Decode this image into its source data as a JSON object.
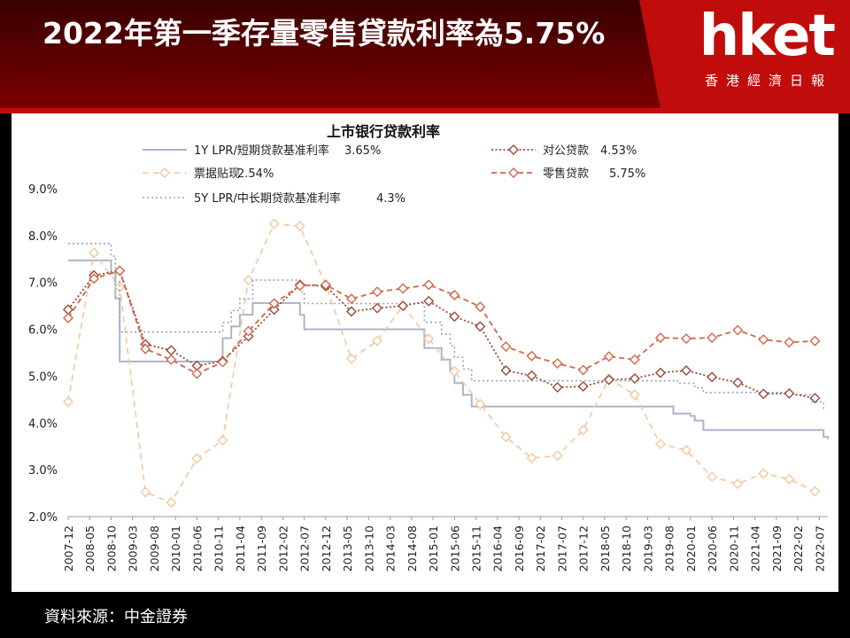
{
  "header": {
    "title": "2022年第一季存量零售貸款利率為5.75%"
  },
  "logo": {
    "text": "hket",
    "subtitle": "香港經濟日報"
  },
  "source": "資料來源：中金證券",
  "colors": {
    "header_bg": "#7a0000",
    "logo_bg": "#c10c0c",
    "lpr1y": "#aeb4c8",
    "bill": "#f0c8a0",
    "lpr5y": "#9aa0b8",
    "corporate": "#9a4a3a",
    "retail": "#d0674a"
  },
  "chart_data": {
    "type": "line",
    "title": "上市银行贷款利率",
    "ylim": [
      2.0,
      9.0
    ],
    "yticks": [
      "2.0%",
      "3.0%",
      "4.0%",
      "5.0%",
      "6.0%",
      "7.0%",
      "8.0%",
      "9.0%"
    ],
    "xticks": [
      "2007-12",
      "2008-05",
      "2008-10",
      "2009-03",
      "2009-08",
      "2010-01",
      "2010-06",
      "2010-11",
      "2011-04",
      "2011-09",
      "2012-02",
      "2012-07",
      "2012-12",
      "2013-05",
      "2013-10",
      "2014-03",
      "2014-08",
      "2015-01",
      "2015-06",
      "2015-11",
      "2016-04",
      "2016-09",
      "2017-02",
      "2017-07",
      "2017-12",
      "2018-05",
      "2018-10",
      "2019-03",
      "2019-08",
      "2020-01",
      "2020-06",
      "2020-11",
      "2021-04",
      "2021-09",
      "2022-02",
      "2022-07"
    ],
    "series": [
      {
        "name": "1Y LPR/短期贷款基准利率",
        "value_label": "3.65%",
        "style": "solid",
        "x": [
          "2007-12",
          "2008-09",
          "2008-10",
          "2008-11",
          "2008-12",
          "2010-10",
          "2010-12",
          "2011-02",
          "2011-04",
          "2011-07",
          "2012-06",
          "2012-07",
          "2014-11",
          "2015-03",
          "2015-05",
          "2015-06",
          "2015-08",
          "2015-10",
          "2019-08",
          "2019-09",
          "2019-11",
          "2020-01",
          "2020-02",
          "2020-04",
          "2022-01",
          "2022-08",
          "2022-09"
        ],
        "y": [
          7.47,
          7.47,
          7.2,
          6.66,
          5.31,
          5.31,
          5.81,
          6.06,
          6.31,
          6.56,
          6.31,
          6.0,
          5.6,
          5.35,
          5.1,
          4.85,
          4.6,
          4.35,
          4.35,
          4.2,
          4.2,
          4.15,
          4.05,
          3.85,
          3.85,
          3.7,
          3.65
        ]
      },
      {
        "name": "票据贴现",
        "value_label": "2.54%",
        "style": "dashed-diamond",
        "x": [
          "2007-12",
          "2008-06",
          "2008-12",
          "2009-06",
          "2009-12",
          "2010-06",
          "2010-12",
          "2011-06",
          "2011-12",
          "2012-06",
          "2012-12",
          "2013-06",
          "2013-12",
          "2014-06",
          "2014-12",
          "2015-06",
          "2015-12",
          "2016-06",
          "2016-12",
          "2017-06",
          "2017-12",
          "2018-06",
          "2018-12",
          "2019-06",
          "2019-12",
          "2020-06",
          "2020-12",
          "2021-06",
          "2021-12",
          "2022-06"
        ],
        "y": [
          4.45,
          7.63,
          6.9,
          2.52,
          2.3,
          3.24,
          3.63,
          7.05,
          8.25,
          8.2,
          6.95,
          5.37,
          5.75,
          6.5,
          5.8,
          5.1,
          4.4,
          3.7,
          3.25,
          3.3,
          3.85,
          4.95,
          4.6,
          3.55,
          3.42,
          2.85,
          2.7,
          2.92,
          2.8,
          2.54
        ]
      },
      {
        "name": "5Y LPR/中长期贷款基准利率",
        "value_label": "4.3%",
        "style": "dotted",
        "x": [
          "2007-12",
          "2008-09",
          "2008-10",
          "2008-11",
          "2008-12",
          "2010-10",
          "2010-12",
          "2011-02",
          "2011-04",
          "2011-07",
          "2012-06",
          "2012-07",
          "2014-11",
          "2015-03",
          "2015-05",
          "2015-06",
          "2015-08",
          "2015-10",
          "2019-08",
          "2019-10",
          "2020-02",
          "2020-04",
          "2021-12",
          "2022-01",
          "2022-05",
          "2022-08"
        ],
        "y": [
          7.83,
          7.83,
          7.56,
          7.02,
          5.94,
          5.94,
          6.14,
          6.4,
          6.65,
          7.05,
          6.8,
          6.55,
          6.15,
          5.9,
          5.65,
          5.4,
          5.15,
          4.9,
          4.9,
          4.85,
          4.75,
          4.65,
          4.65,
          4.6,
          4.45,
          4.3
        ]
      },
      {
        "name": "对公贷款",
        "value_label": "4.53%",
        "style": "dotted-diamond",
        "x": [
          "2007-12",
          "2008-06",
          "2008-12",
          "2009-06",
          "2009-12",
          "2010-06",
          "2010-12",
          "2011-06",
          "2011-12",
          "2012-06",
          "2012-12",
          "2013-06",
          "2013-12",
          "2014-06",
          "2014-12",
          "2015-06",
          "2015-12",
          "2016-06",
          "2016-12",
          "2017-06",
          "2017-12",
          "2018-06",
          "2018-12",
          "2019-06",
          "2019-12",
          "2020-06",
          "2020-12",
          "2021-06",
          "2021-12",
          "2022-06"
        ],
        "y": [
          6.42,
          7.15,
          7.25,
          5.68,
          5.55,
          5.22,
          5.32,
          5.85,
          6.42,
          6.95,
          6.92,
          6.38,
          6.45,
          6.5,
          6.6,
          6.27,
          6.06,
          5.12,
          5.01,
          4.76,
          4.78,
          4.92,
          4.95,
          5.07,
          5.12,
          4.98,
          4.86,
          4.62,
          4.63,
          4.53
        ]
      },
      {
        "name": "零售贷款",
        "value_label": "5.75%",
        "style": "dashed-diamond",
        "x": [
          "2007-12",
          "2008-06",
          "2008-12",
          "2009-06",
          "2009-12",
          "2010-06",
          "2010-12",
          "2011-06",
          "2011-12",
          "2012-06",
          "2012-12",
          "2013-06",
          "2013-12",
          "2014-06",
          "2014-12",
          "2015-06",
          "2015-12",
          "2016-06",
          "2016-12",
          "2017-06",
          "2017-12",
          "2018-06",
          "2018-12",
          "2019-06",
          "2019-12",
          "2020-06",
          "2020-12",
          "2021-06",
          "2021-12",
          "2022-06"
        ],
        "y": [
          6.24,
          7.08,
          7.25,
          5.58,
          5.35,
          5.05,
          5.3,
          5.96,
          6.55,
          6.93,
          6.95,
          6.65,
          6.8,
          6.87,
          6.95,
          6.73,
          6.48,
          5.63,
          5.43,
          5.27,
          5.13,
          5.42,
          5.35,
          5.82,
          5.8,
          5.82,
          5.98,
          5.78,
          5.72,
          5.75
        ]
      }
    ]
  }
}
